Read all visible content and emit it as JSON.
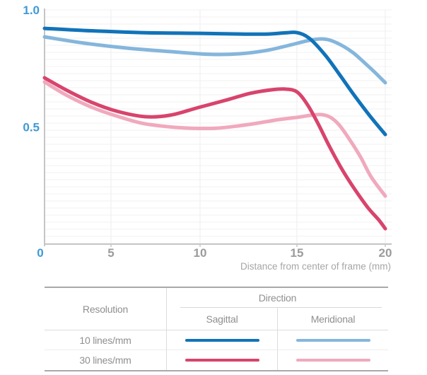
{
  "chart_data": {
    "type": "line",
    "title": "",
    "xlabel": "Distance from center of frame (mm)",
    "ylabel": "",
    "xlim": [
      0,
      20
    ],
    "ylim": [
      0,
      1
    ],
    "x_tick_values": [
      0,
      5,
      10,
      15,
      20
    ],
    "x_tick_labels": [
      "0",
      "5",
      "10",
      "15",
      "20"
    ],
    "y_tick_values": [
      1.0,
      0.5
    ],
    "y_tick_labels": [
      "1.0",
      "0.5"
    ],
    "grid": true,
    "legend_position": "bottom-table",
    "series": [
      {
        "name": "10 lines/mm Sagittal",
        "color": "#1173b9",
        "points": [
          [
            0,
            0.921
          ],
          [
            3,
            0.912
          ],
          [
            6.7,
            0.903
          ],
          [
            9.9,
            0.9
          ],
          [
            12.1,
            0.897
          ],
          [
            13.5,
            0.897
          ],
          [
            14.4,
            0.902
          ],
          [
            15,
            0.903
          ],
          [
            15.7,
            0.879
          ],
          [
            16.6,
            0.807
          ],
          [
            17.4,
            0.725
          ],
          [
            18.2,
            0.64
          ],
          [
            19.1,
            0.55
          ],
          [
            20,
            0.468
          ]
        ]
      },
      {
        "name": "10 lines/mm Meridional",
        "color": "#85b6dc",
        "points": [
          [
            0,
            0.885
          ],
          [
            3,
            0.858
          ],
          [
            5.9,
            0.837
          ],
          [
            8.3,
            0.822
          ],
          [
            10.6,
            0.81
          ],
          [
            12.1,
            0.813
          ],
          [
            13.5,
            0.828
          ],
          [
            14.6,
            0.849
          ],
          [
            15.7,
            0.87
          ],
          [
            16.4,
            0.876
          ],
          [
            16.9,
            0.87
          ],
          [
            17.6,
            0.846
          ],
          [
            18.2,
            0.816
          ],
          [
            18.8,
            0.776
          ],
          [
            19.4,
            0.734
          ],
          [
            20,
            0.689
          ]
        ]
      },
      {
        "name": "30 lines/mm Sagittal",
        "color": "#d8446c",
        "points": [
          [
            0,
            0.71
          ],
          [
            1.7,
            0.656
          ],
          [
            3.6,
            0.604
          ],
          [
            5.3,
            0.568
          ],
          [
            6.9,
            0.544
          ],
          [
            8.3,
            0.55
          ],
          [
            9.9,
            0.583
          ],
          [
            11.4,
            0.616
          ],
          [
            12.6,
            0.644
          ],
          [
            13.7,
            0.659
          ],
          [
            14.4,
            0.662
          ],
          [
            15,
            0.65
          ],
          [
            15.6,
            0.595
          ],
          [
            16.2,
            0.514
          ],
          [
            16.8,
            0.423
          ],
          [
            17.5,
            0.326
          ],
          [
            18.2,
            0.242
          ],
          [
            19,
            0.157
          ],
          [
            19.6,
            0.106
          ],
          [
            20,
            0.066
          ]
        ]
      },
      {
        "name": "30 lines/mm Meridional",
        "color": "#f0a9bd",
        "points": [
          [
            0,
            0.692
          ],
          [
            1.7,
            0.634
          ],
          [
            3.6,
            0.583
          ],
          [
            5.3,
            0.547
          ],
          [
            6.7,
            0.517
          ],
          [
            8.1,
            0.502
          ],
          [
            9.5,
            0.495
          ],
          [
            10.8,
            0.495
          ],
          [
            11.9,
            0.504
          ],
          [
            13,
            0.517
          ],
          [
            14.1,
            0.532
          ],
          [
            15,
            0.541
          ],
          [
            15.8,
            0.55
          ],
          [
            16.4,
            0.553
          ],
          [
            16.9,
            0.541
          ],
          [
            17.4,
            0.508
          ],
          [
            18,
            0.444
          ],
          [
            18.6,
            0.372
          ],
          [
            19.2,
            0.287
          ],
          [
            20,
            0.205
          ]
        ]
      }
    ]
  },
  "axis": {
    "xlabel": "Distance from center of frame (mm)"
  },
  "legend_table": {
    "resolution_header": "Resolution",
    "direction_header": "Direction",
    "sagittal_label": "Sagittal",
    "meridional_label": "Meridional",
    "rows": [
      {
        "label": "10 lines/mm",
        "sagittal_color": "#1173b9",
        "meridional_color": "#85b6dc"
      },
      {
        "label": "30 lines/mm",
        "sagittal_color": "#d8446c",
        "meridional_color": "#f0a9bd"
      }
    ]
  },
  "colors": {
    "axis_label_blue": "#3f99d5",
    "tick_gray": "#9b9b9b",
    "axis_line": "#c6c6c6",
    "grid_line_h": "#f2f2f2",
    "grid_line_v": "#ededed",
    "xlabel_gray": "#a6a6a6",
    "table_text": "#8f8f8f",
    "table_border": "#a9a9a9",
    "table_divider": "#dcdcdc"
  }
}
